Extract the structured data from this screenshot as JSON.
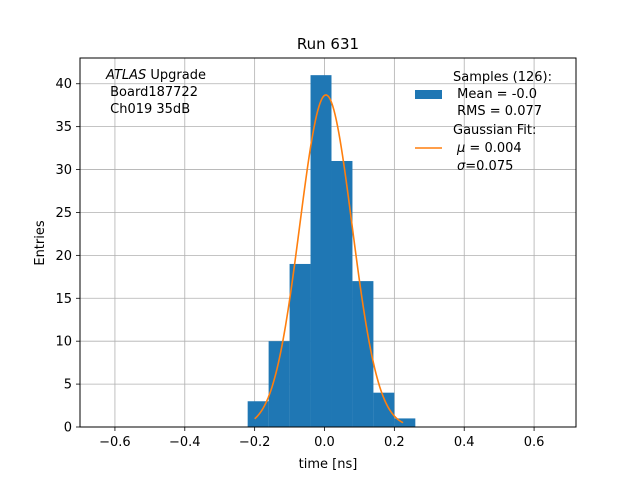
{
  "chart_data": {
    "type": "bar",
    "title": "Run 631",
    "xlabel": "time [ns]",
    "ylabel": "Entries",
    "xlim": [
      -0.7,
      0.72
    ],
    "ylim": [
      0,
      43
    ],
    "grid": true,
    "xticks": [
      -0.6,
      -0.4,
      -0.2,
      0.0,
      0.2,
      0.4,
      0.6
    ],
    "xtick_labels": [
      "−0.6",
      "−0.4",
      "−0.2",
      "0.0",
      "0.2",
      "0.4",
      "0.6"
    ],
    "yticks": [
      0,
      5,
      10,
      15,
      20,
      25,
      30,
      35,
      40
    ],
    "ytick_labels": [
      "0",
      "5",
      "10",
      "15",
      "20",
      "25",
      "30",
      "35",
      "40"
    ],
    "bin_edges": [
      -0.22,
      -0.16,
      -0.1,
      -0.04,
      0.02,
      0.08,
      0.14,
      0.2,
      0.26
    ],
    "values": [
      3,
      10,
      19,
      41,
      31,
      17,
      4,
      1
    ],
    "bar_color": "#1f77b4",
    "fit": {
      "name": "Gaussian Fit:",
      "mu": 0.004,
      "sigma": 0.075,
      "amplitude": 38.7,
      "x_range": [
        -0.2,
        0.225
      ],
      "color": "#ff7f0e"
    },
    "legend": {
      "placement": "top-right",
      "samples_title": "Samples (126):",
      "samples_mean": " Mean = -0.0",
      "samples_rms": " RMS = 0.077",
      "fit_title": "Gaussian Fit:",
      "fit_mu_sym": "μ",
      "fit_mu_val": " = 0.004",
      "fit_sigma_sym": "σ",
      "fit_sigma_val": "=0.075"
    },
    "annotation": {
      "atlas": "ATLAS",
      "upgrade": " Upgrade",
      "board": " Board187722",
      "channel": " Ch019 35dB"
    }
  }
}
